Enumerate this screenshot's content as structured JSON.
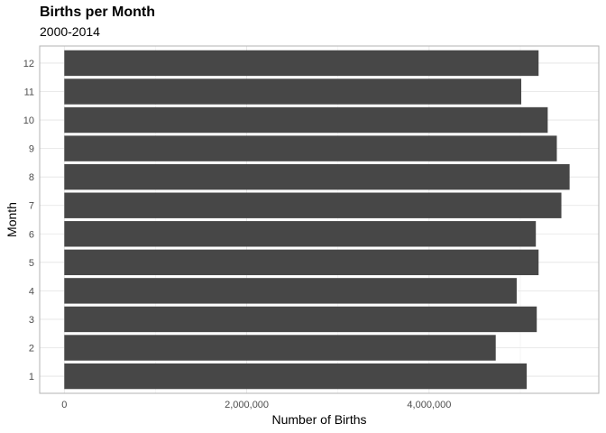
{
  "chart_data": {
    "type": "bar",
    "orientation": "horizontal",
    "title": "Births per Month",
    "subtitle": "2000-2014",
    "xlabel": "Number of Births",
    "ylabel": "Month",
    "categories": [
      "1",
      "2",
      "3",
      "4",
      "5",
      "6",
      "7",
      "8",
      "9",
      "10",
      "11",
      "12"
    ],
    "values": [
      5070000,
      4730000,
      5180000,
      4960000,
      5200000,
      5170000,
      5450000,
      5540000,
      5400000,
      5300000,
      5010000,
      5200000
    ],
    "xlim": [
      -270000,
      5860000
    ],
    "xticks": [
      0,
      2000000,
      4000000
    ],
    "xtick_labels": [
      "0",
      "2,000,000",
      "4,000,000"
    ],
    "grid": true,
    "bar_color": "#474747"
  }
}
